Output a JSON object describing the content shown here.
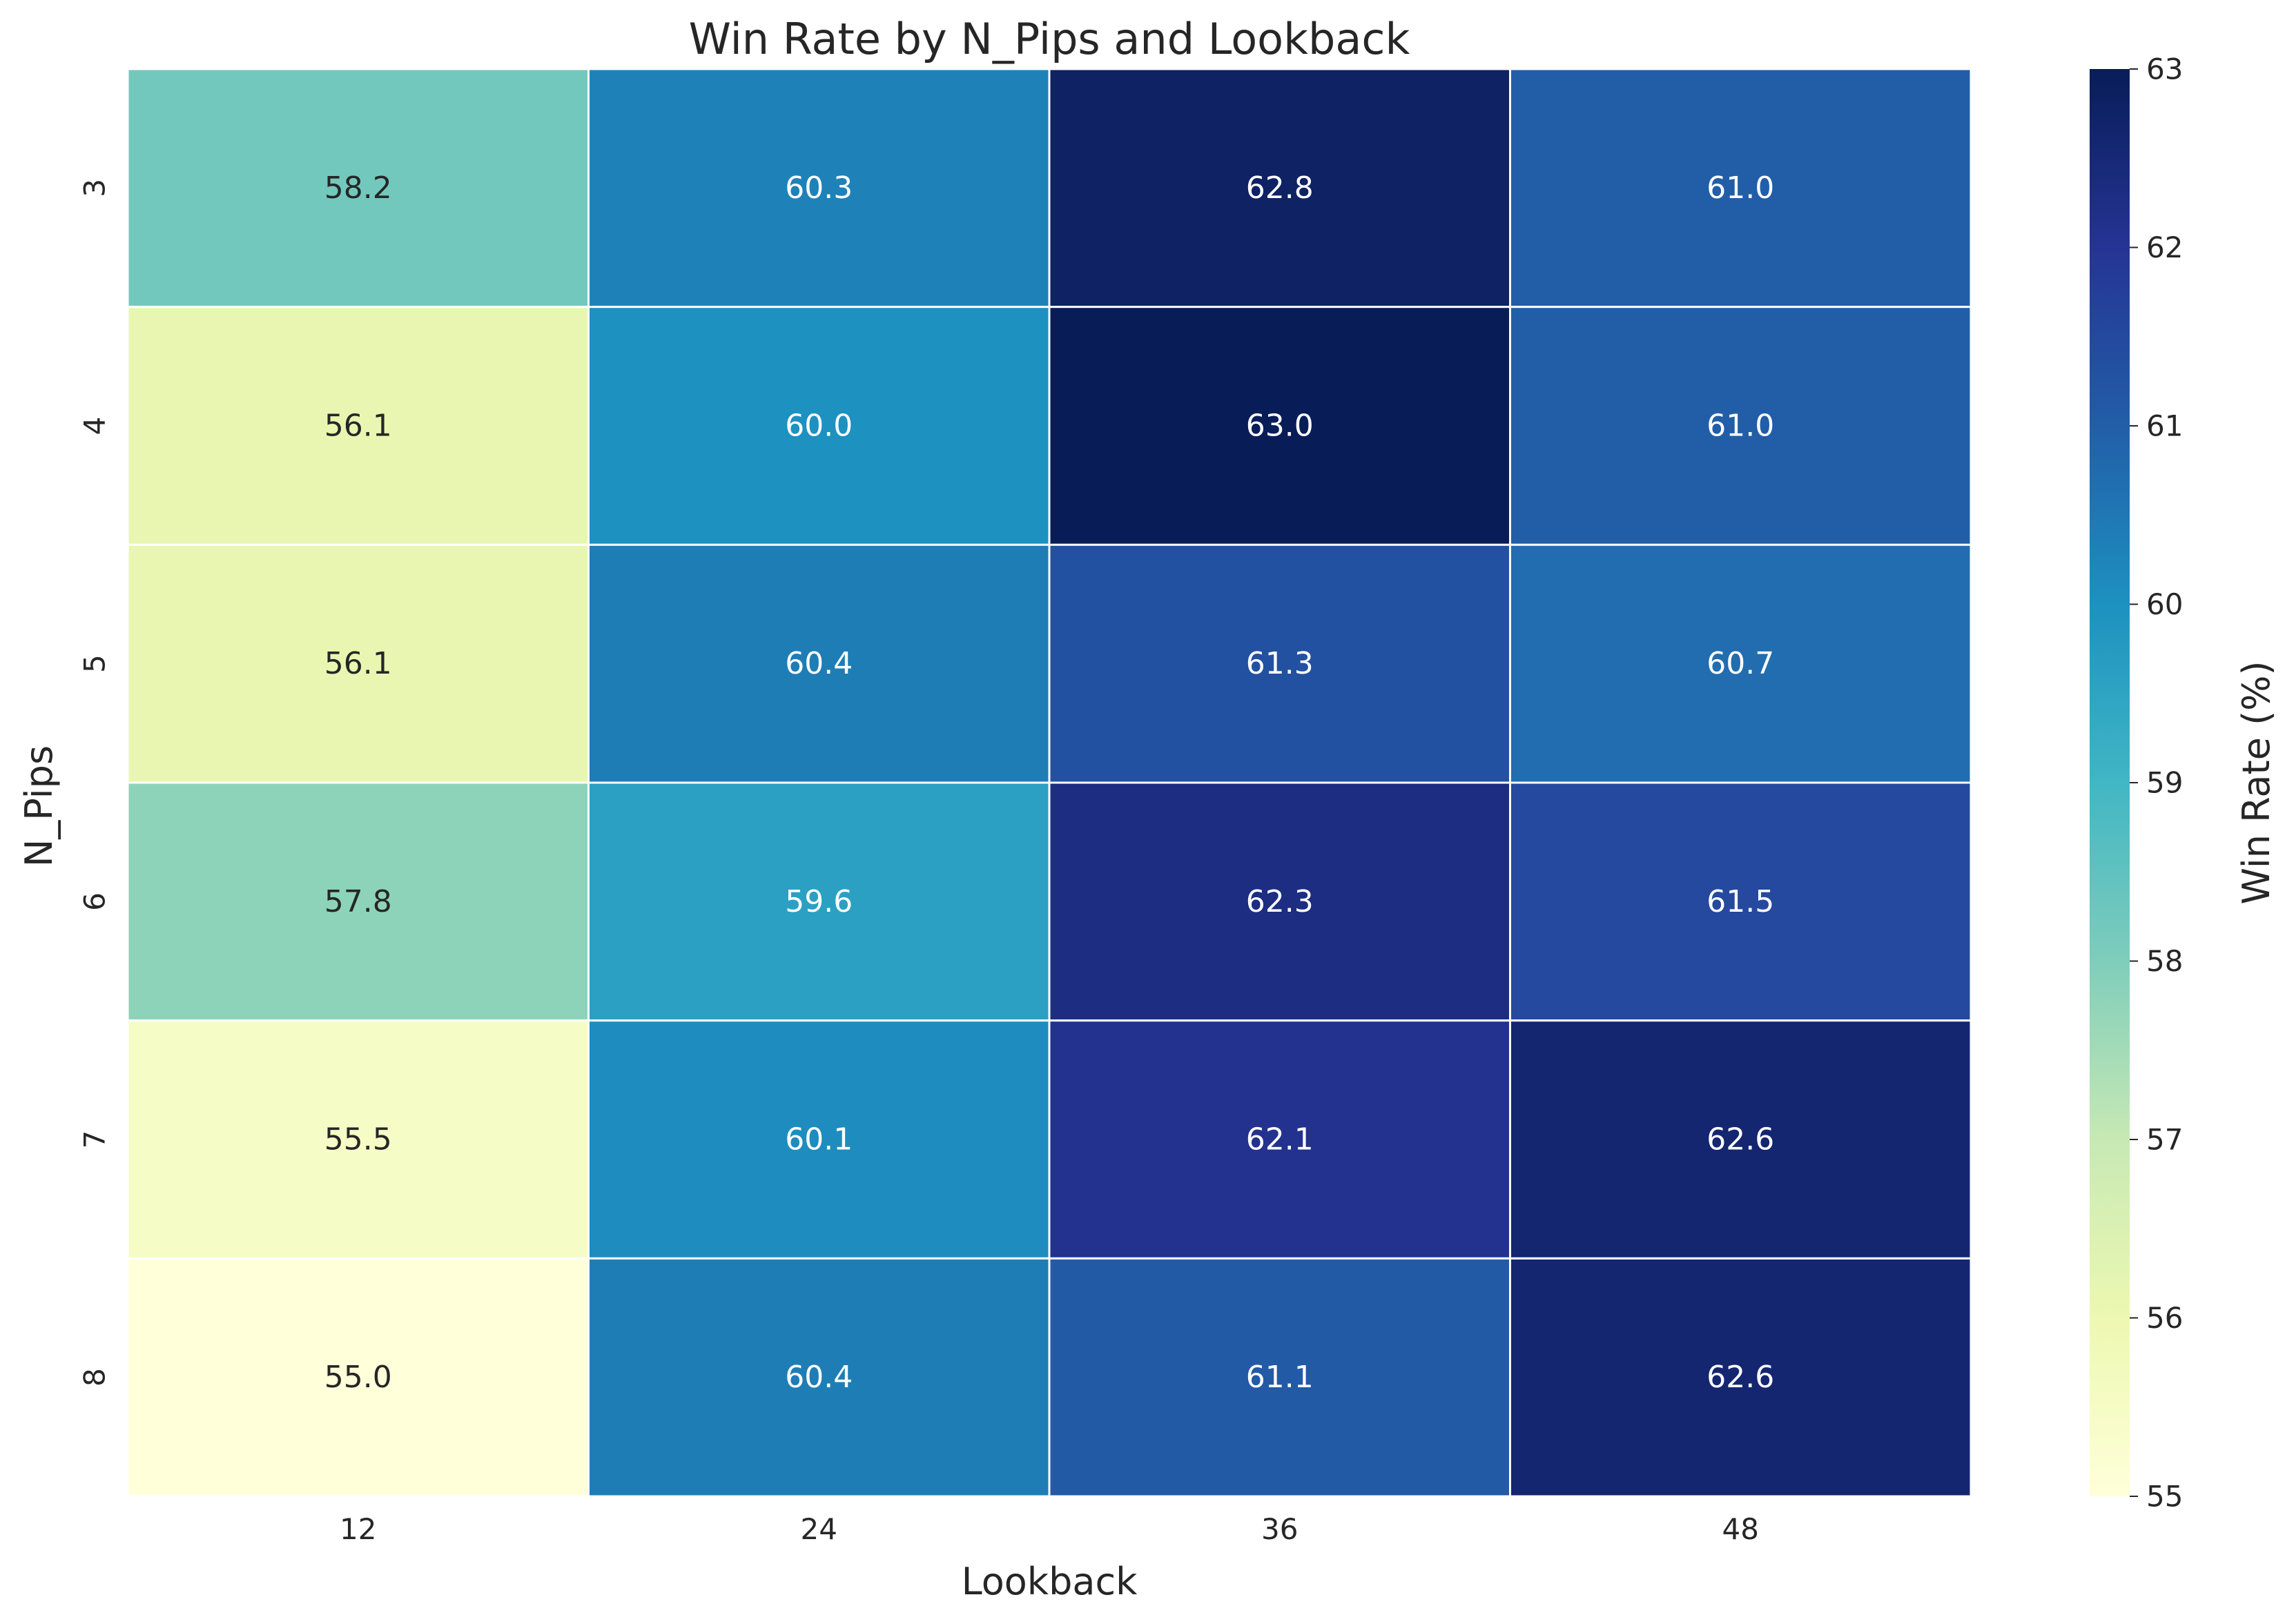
{
  "chart_data": {
    "type": "heatmap",
    "title": "Win Rate by N_Pips and Lookback",
    "xlabel": "Lookback",
    "ylabel": "N_Pips",
    "x_categories": [
      "12",
      "24",
      "36",
      "48"
    ],
    "y_categories": [
      "3",
      "4",
      "5",
      "6",
      "7",
      "8"
    ],
    "values": [
      [
        58.2,
        60.3,
        62.8,
        61.0
      ],
      [
        56.1,
        60.0,
        63.0,
        61.0
      ],
      [
        56.1,
        60.4,
        61.3,
        60.7
      ],
      [
        57.8,
        59.6,
        62.3,
        61.5
      ],
      [
        55.5,
        60.1,
        62.1,
        62.6
      ],
      [
        55.0,
        60.4,
        61.1,
        62.6
      ]
    ],
    "value_format": "one decimal",
    "colormap": "YlGnBu",
    "colorbar": {
      "label": "Win Rate (%)",
      "range": [
        55,
        63
      ],
      "ticks": [
        "55",
        "56",
        "57",
        "58",
        "59",
        "60",
        "61",
        "62",
        "63"
      ]
    },
    "colors": {
      "annotation_light": "#ffffff",
      "annotation_dark": "#262626",
      "cell_border": "#ffffff"
    }
  }
}
